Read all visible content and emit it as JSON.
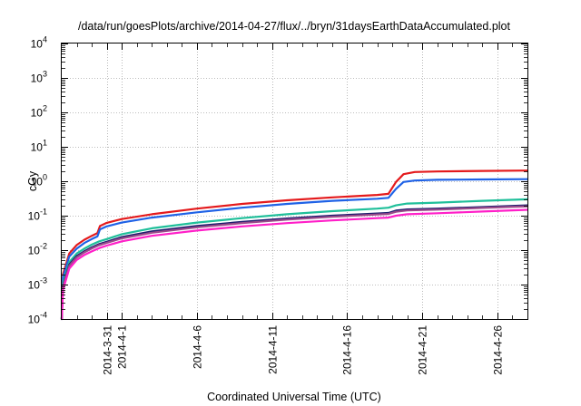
{
  "chart_data": {
    "type": "line",
    "title": "/data/run/goesPlots/archive/2014-04-27/flux/../bryn/31daysEarthDataAccumulated.plot",
    "xlabel": "Coordinated Universal Time (UTC)",
    "ylabel": "cGy",
    "y_scale": "log",
    "ylim": [
      0.0001,
      10000
    ],
    "xlim": [
      "2014-03-28",
      "2014-04-28"
    ],
    "grid": true,
    "y_ticks": [
      {
        "value": 0.0001,
        "base": "10",
        "exp": "-4"
      },
      {
        "value": 0.001,
        "base": "10",
        "exp": "-3"
      },
      {
        "value": 0.01,
        "base": "10",
        "exp": "-2"
      },
      {
        "value": 0.1,
        "base": "10",
        "exp": "-1"
      },
      {
        "value": 1,
        "base": "10",
        "exp": "0"
      },
      {
        "value": 10,
        "base": "10",
        "exp": "1"
      },
      {
        "value": 100,
        "base": "10",
        "exp": "2"
      },
      {
        "value": 1000,
        "base": "10",
        "exp": "3"
      },
      {
        "value": 10000,
        "base": "10",
        "exp": "4"
      }
    ],
    "x_ticks": [
      {
        "date": "2014-03-31",
        "label": "2014-3-31"
      },
      {
        "date": "2014-04-01",
        "label": "2014-4-1"
      },
      {
        "date": "2014-04-06",
        "label": "2014-4-6"
      },
      {
        "date": "2014-04-11",
        "label": "2014-4-11"
      },
      {
        "date": "2014-04-16",
        "label": "2014-4-16"
      },
      {
        "date": "2014-04-21",
        "label": "2014-4-21"
      },
      {
        "date": "2014-04-26",
        "label": "2014-4-26"
      }
    ],
    "series": [
      {
        "color": "#e41a1c",
        "points": [
          [
            "2014-03-28T00:00",
            0.0001
          ],
          [
            "2014-03-28T02:00",
            0.002
          ],
          [
            "2014-03-28T12:00",
            0.008
          ],
          [
            "2014-03-29T00:00",
            0.014
          ],
          [
            "2014-03-29T12:00",
            0.02
          ],
          [
            "2014-03-30T00:00",
            0.026
          ],
          [
            "2014-03-30T09:00",
            0.031
          ],
          [
            "2014-03-30T13:00",
            0.05
          ],
          [
            "2014-03-31T00:00",
            0.062
          ],
          [
            "2014-04-01T00:00",
            0.08
          ],
          [
            "2014-04-03T00:00",
            0.11
          ],
          [
            "2014-04-06T00:00",
            0.16
          ],
          [
            "2014-04-09T00:00",
            0.22
          ],
          [
            "2014-04-12T00:00",
            0.28
          ],
          [
            "2014-04-15T00:00",
            0.34
          ],
          [
            "2014-04-18T00:00",
            0.4
          ],
          [
            "2014-04-18T18:00",
            0.43
          ],
          [
            "2014-04-19T06:00",
            0.95
          ],
          [
            "2014-04-19T18:00",
            1.6
          ],
          [
            "2014-04-20T12:00",
            1.85
          ],
          [
            "2014-04-22T00:00",
            1.92
          ],
          [
            "2014-04-25T00:00",
            2.0
          ],
          [
            "2014-04-28T00:00",
            2.05
          ]
        ]
      },
      {
        "color": "#1f62e6",
        "points": [
          [
            "2014-03-28T00:00",
            0.0001
          ],
          [
            "2014-03-28T02:00",
            0.0016
          ],
          [
            "2014-03-28T12:00",
            0.0065
          ],
          [
            "2014-03-29T00:00",
            0.011
          ],
          [
            "2014-03-29T12:00",
            0.016
          ],
          [
            "2014-03-30T00:00",
            0.021
          ],
          [
            "2014-03-30T09:00",
            0.025
          ],
          [
            "2014-03-30T13:00",
            0.04
          ],
          [
            "2014-03-31T00:00",
            0.049
          ],
          [
            "2014-04-01T00:00",
            0.063
          ],
          [
            "2014-04-03T00:00",
            0.088
          ],
          [
            "2014-04-06T00:00",
            0.125
          ],
          [
            "2014-04-09T00:00",
            0.17
          ],
          [
            "2014-04-12T00:00",
            0.22
          ],
          [
            "2014-04-15T00:00",
            0.27
          ],
          [
            "2014-04-18T00:00",
            0.31
          ],
          [
            "2014-04-18T18:00",
            0.33
          ],
          [
            "2014-04-19T06:00",
            0.6
          ],
          [
            "2014-04-19T18:00",
            0.95
          ],
          [
            "2014-04-20T12:00",
            1.05
          ],
          [
            "2014-04-22T00:00",
            1.1
          ],
          [
            "2014-04-25T00:00",
            1.13
          ],
          [
            "2014-04-28T00:00",
            1.15
          ]
        ]
      },
      {
        "color": "#1fbf9a",
        "points": [
          [
            "2014-03-28T00:00",
            0.0001
          ],
          [
            "2014-03-28T02:00",
            0.0011
          ],
          [
            "2014-03-28T12:00",
            0.0045
          ],
          [
            "2014-03-29T00:00",
            0.008
          ],
          [
            "2014-03-29T12:00",
            0.011
          ],
          [
            "2014-03-30T00:00",
            0.0145
          ],
          [
            "2014-03-30T12:00",
            0.018
          ],
          [
            "2014-03-31T00:00",
            0.021
          ],
          [
            "2014-04-01T00:00",
            0.029
          ],
          [
            "2014-04-03T00:00",
            0.043
          ],
          [
            "2014-04-06T00:00",
            0.063
          ],
          [
            "2014-04-09T00:00",
            0.085
          ],
          [
            "2014-04-12T00:00",
            0.11
          ],
          [
            "2014-04-15T00:00",
            0.135
          ],
          [
            "2014-04-18T00:00",
            0.16
          ],
          [
            "2014-04-18T18:00",
            0.17
          ],
          [
            "2014-04-19T06:00",
            0.2
          ],
          [
            "2014-04-20T00:00",
            0.225
          ],
          [
            "2014-04-22T00:00",
            0.24
          ],
          [
            "2014-04-25T00:00",
            0.27
          ],
          [
            "2014-04-28T00:00",
            0.3
          ]
        ]
      },
      {
        "color": "#1c1c6e",
        "points": [
          [
            "2014-03-28T00:00",
            0.0001
          ],
          [
            "2014-03-28T02:00",
            0.0009
          ],
          [
            "2014-03-28T12:00",
            0.0038
          ],
          [
            "2014-03-29T00:00",
            0.0067
          ],
          [
            "2014-03-29T12:00",
            0.0092
          ],
          [
            "2014-03-30T00:00",
            0.012
          ],
          [
            "2014-03-30T12:00",
            0.015
          ],
          [
            "2014-03-31T00:00",
            0.0175
          ],
          [
            "2014-04-01T00:00",
            0.024
          ],
          [
            "2014-04-03T00:00",
            0.035
          ],
          [
            "2014-04-06T00:00",
            0.05
          ],
          [
            "2014-04-09T00:00",
            0.066
          ],
          [
            "2014-04-12T00:00",
            0.083
          ],
          [
            "2014-04-15T00:00",
            0.1
          ],
          [
            "2014-04-18T00:00",
            0.116
          ],
          [
            "2014-04-18T18:00",
            0.12
          ],
          [
            "2014-04-19T06:00",
            0.14
          ],
          [
            "2014-04-20T00:00",
            0.152
          ],
          [
            "2014-04-22T00:00",
            0.16
          ],
          [
            "2014-04-25T00:00",
            0.178
          ],
          [
            "2014-04-28T00:00",
            0.2
          ]
        ]
      },
      {
        "color": "#9a4a8a",
        "points": [
          [
            "2014-03-28T00:00",
            0.0001
          ],
          [
            "2014-03-28T02:00",
            0.00085
          ],
          [
            "2014-03-28T12:00",
            0.0035
          ],
          [
            "2014-03-29T00:00",
            0.0062
          ],
          [
            "2014-03-29T12:00",
            0.0086
          ],
          [
            "2014-03-30T00:00",
            0.0112
          ],
          [
            "2014-03-30T12:00",
            0.014
          ],
          [
            "2014-03-31T00:00",
            0.0163
          ],
          [
            "2014-04-01T00:00",
            0.022
          ],
          [
            "2014-04-03T00:00",
            0.032
          ],
          [
            "2014-04-06T00:00",
            0.046
          ],
          [
            "2014-04-09T00:00",
            0.061
          ],
          [
            "2014-04-12T00:00",
            0.077
          ],
          [
            "2014-04-15T00:00",
            0.093
          ],
          [
            "2014-04-18T00:00",
            0.108
          ],
          [
            "2014-04-18T18:00",
            0.112
          ],
          [
            "2014-04-19T06:00",
            0.13
          ],
          [
            "2014-04-20T00:00",
            0.142
          ],
          [
            "2014-04-22T00:00",
            0.15
          ],
          [
            "2014-04-25T00:00",
            0.168
          ],
          [
            "2014-04-28T00:00",
            0.188
          ]
        ]
      },
      {
        "color": "#ff1fc8",
        "points": [
          [
            "2014-03-28T00:00",
            0.0001
          ],
          [
            "2014-03-28T02:00",
            0.0007
          ],
          [
            "2014-03-28T12:00",
            0.0029
          ],
          [
            "2014-03-29T00:00",
            0.0052
          ],
          [
            "2014-03-29T12:00",
            0.0072
          ],
          [
            "2014-03-30T00:00",
            0.0092
          ],
          [
            "2014-03-30T12:00",
            0.0115
          ],
          [
            "2014-03-31T00:00",
            0.0135
          ],
          [
            "2014-04-01T00:00",
            0.018
          ],
          [
            "2014-04-03T00:00",
            0.026
          ],
          [
            "2014-04-06T00:00",
            0.037
          ],
          [
            "2014-04-09T00:00",
            0.049
          ],
          [
            "2014-04-12T00:00",
            0.061
          ],
          [
            "2014-04-15T00:00",
            0.073
          ],
          [
            "2014-04-18T00:00",
            0.085
          ],
          [
            "2014-04-18T18:00",
            0.088
          ],
          [
            "2014-04-19T06:00",
            0.1
          ],
          [
            "2014-04-20T00:00",
            0.11
          ],
          [
            "2014-04-22T00:00",
            0.118
          ],
          [
            "2014-04-25T00:00",
            0.132
          ],
          [
            "2014-04-28T00:00",
            0.148
          ]
        ]
      }
    ]
  }
}
